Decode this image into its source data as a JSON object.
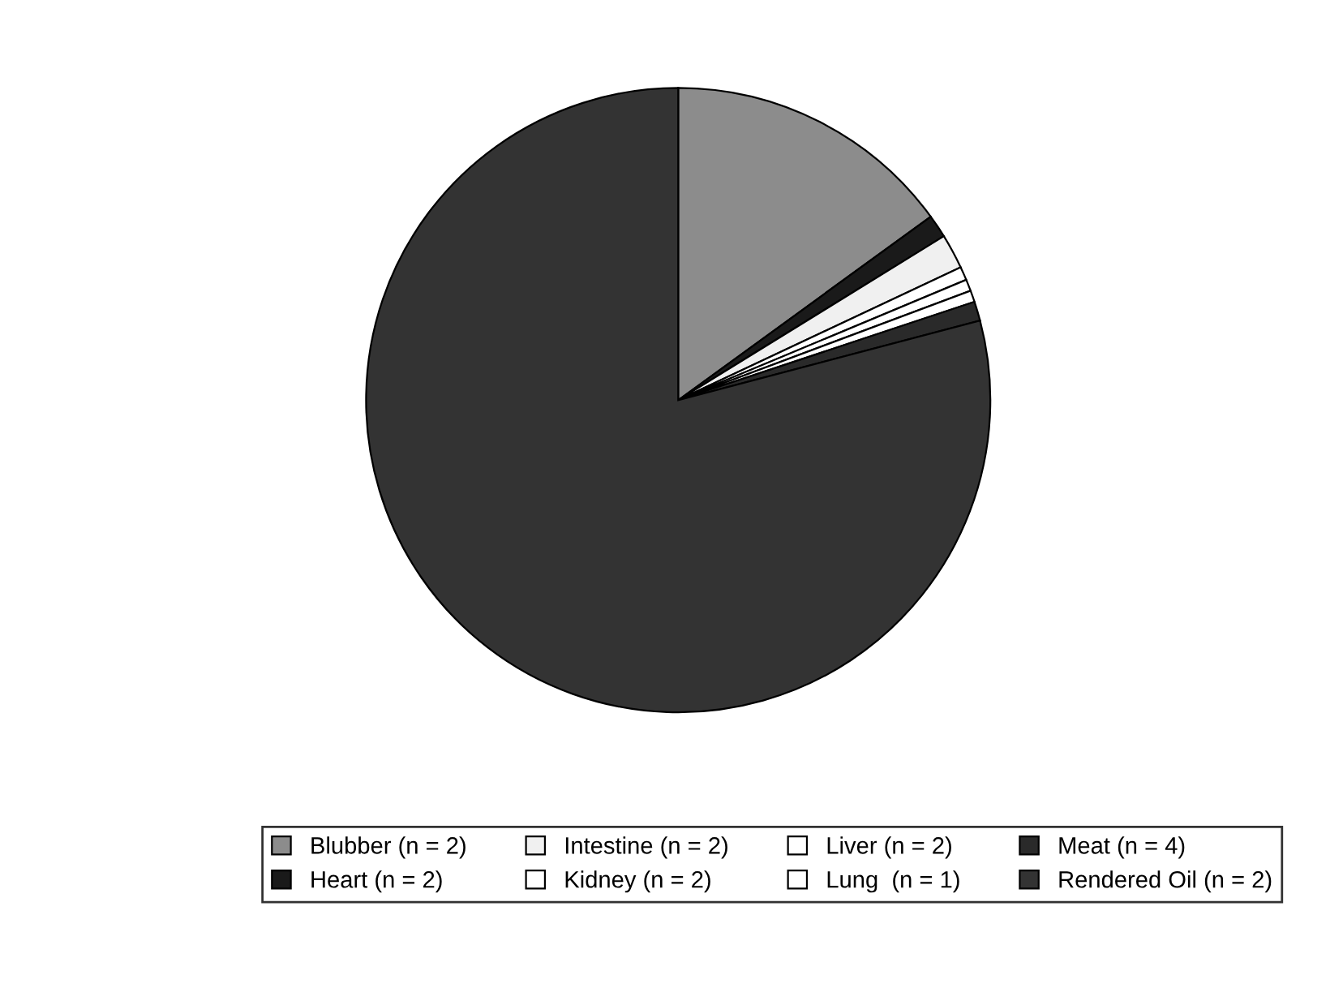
{
  "chart_data": {
    "type": "pie",
    "categories": [
      "Blubber (n = 2)",
      "Heart (n = 2)",
      "Intestine (n = 2)",
      "Kidney (n = 2)",
      "Liver (n = 2)",
      "Lung  (n = 1)",
      "Meat (n = 4)",
      "Rendered Oil (n = 2)"
    ],
    "values": [
      15.0,
      1.2,
      1.8,
      0.7,
      0.6,
      0.6,
      1.0,
      79.1
    ],
    "colors": [
      "#8c8c8c",
      "#1a1a1a",
      "#f0f0f0",
      "#ffffff",
      "#ffffff",
      "#ffffff",
      "#2a2a2a",
      "#333333"
    ],
    "legend": "bottom"
  }
}
